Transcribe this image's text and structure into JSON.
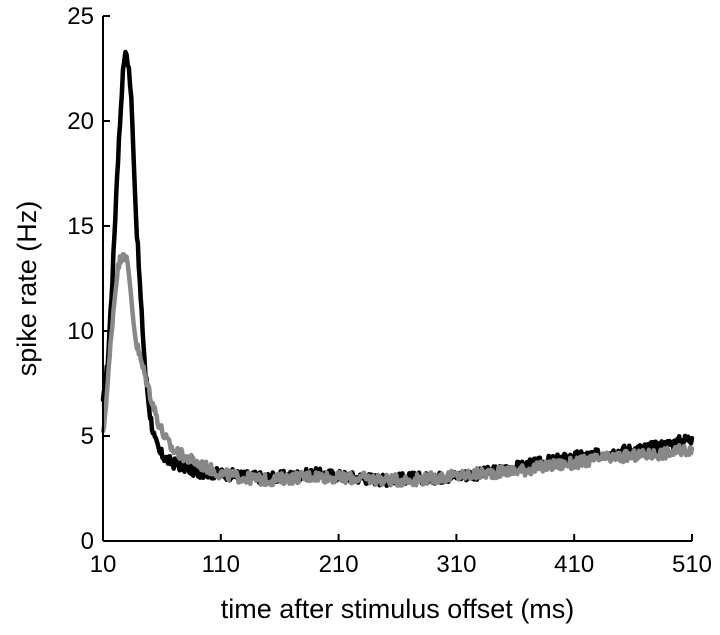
{
  "chart_data": {
    "type": "line",
    "title": "",
    "xlabel": "time after stimulus offset (ms)",
    "ylabel": "spike rate (Hz)",
    "xlim": [
      10,
      510
    ],
    "ylim": [
      0,
      25
    ],
    "xticks": [
      10,
      110,
      210,
      310,
      410,
      510
    ],
    "yticks": [
      0,
      5,
      10,
      15,
      20,
      25
    ],
    "xtick_labels": [
      "10",
      "110",
      "210",
      "310",
      "410",
      "510"
    ],
    "ytick_labels": [
      "0",
      "5",
      "10",
      "15",
      "20",
      "25"
    ],
    "grid": false,
    "legend": false,
    "series": [
      {
        "color": "#000000",
        "x": [
          10,
          14,
          18,
          22,
          26,
          28,
          30,
          32,
          34,
          36,
          38,
          42,
          46,
          50,
          54,
          58,
          62,
          66,
          70,
          80,
          90,
          110,
          130,
          150,
          170,
          190,
          210,
          230,
          250,
          270,
          290,
          310,
          330,
          350,
          370,
          390,
          410,
          430,
          450,
          470,
          490,
          510
        ],
        "y": [
          6.5,
          8.5,
          12.5,
          17.5,
          21.5,
          23.0,
          23.2,
          22.5,
          21.0,
          18.5,
          15.5,
          11.5,
          8.0,
          6.0,
          4.8,
          4.2,
          4.0,
          3.8,
          3.7,
          3.5,
          3.3,
          3.2,
          3.1,
          3.0,
          3.1,
          3.2,
          3.1,
          3.0,
          2.9,
          3.0,
          3.0,
          3.1,
          3.2,
          3.4,
          3.6,
          3.8,
          4.0,
          4.1,
          4.3,
          4.4,
          4.6,
          4.9
        ]
      },
      {
        "color": "#888888",
        "x": [
          10,
          14,
          18,
          22,
          26,
          28,
          30,
          32,
          34,
          36,
          38,
          42,
          46,
          50,
          54,
          58,
          62,
          66,
          70,
          80,
          90,
          110,
          130,
          150,
          170,
          190,
          210,
          230,
          250,
          270,
          290,
          310,
          330,
          350,
          370,
          390,
          410,
          430,
          450,
          470,
          490,
          510
        ],
        "y": [
          5.0,
          7.5,
          10.5,
          12.8,
          13.7,
          13.8,
          13.4,
          12.6,
          11.6,
          10.5,
          9.5,
          8.6,
          7.8,
          7.0,
          6.2,
          5.5,
          5.0,
          4.6,
          4.3,
          4.0,
          3.7,
          3.2,
          3.0,
          2.9,
          3.0,
          3.1,
          3.0,
          3.0,
          2.9,
          2.9,
          3.0,
          3.1,
          3.2,
          3.3,
          3.4,
          3.6,
          3.7,
          3.9,
          4.0,
          4.1,
          4.2,
          4.4
        ]
      }
    ]
  }
}
